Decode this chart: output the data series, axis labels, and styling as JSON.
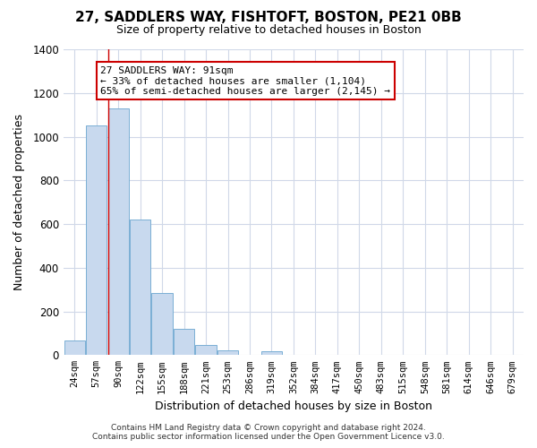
{
  "title": "27, SADDLERS WAY, FISHTOFT, BOSTON, PE21 0BB",
  "subtitle": "Size of property relative to detached houses in Boston",
  "xlabel": "Distribution of detached houses by size in Boston",
  "ylabel": "Number of detached properties",
  "categories": [
    "24sqm",
    "57sqm",
    "90sqm",
    "122sqm",
    "155sqm",
    "188sqm",
    "221sqm",
    "253sqm",
    "286sqm",
    "319sqm",
    "352sqm",
    "384sqm",
    "417sqm",
    "450sqm",
    "483sqm",
    "515sqm",
    "548sqm",
    "581sqm",
    "614sqm",
    "646sqm",
    "679sqm"
  ],
  "values": [
    65,
    1050,
    1130,
    620,
    285,
    120,
    45,
    20,
    0,
    18,
    0,
    0,
    0,
    0,
    0,
    0,
    0,
    0,
    0,
    0,
    0
  ],
  "bar_color": "#c8d9ee",
  "bar_edge_color": "#7aafd4",
  "marker_line_color": "#cc0000",
  "annotation_box_color": "#ffffff",
  "annotation_border_color": "#cc0000",
  "annotation_text_line1": "27 SADDLERS WAY: 91sqm",
  "annotation_text_line2": "← 33% of detached houses are smaller (1,104)",
  "annotation_text_line3": "65% of semi-detached houses are larger (2,145) →",
  "footer_line1": "Contains HM Land Registry data © Crown copyright and database right 2024.",
  "footer_line2": "Contains public sector information licensed under the Open Government Licence v3.0.",
  "ylim": [
    0,
    1400
  ],
  "yticks": [
    0,
    200,
    400,
    600,
    800,
    1000,
    1200,
    1400
  ],
  "background_color": "#ffffff",
  "grid_color": "#d0d8e8"
}
